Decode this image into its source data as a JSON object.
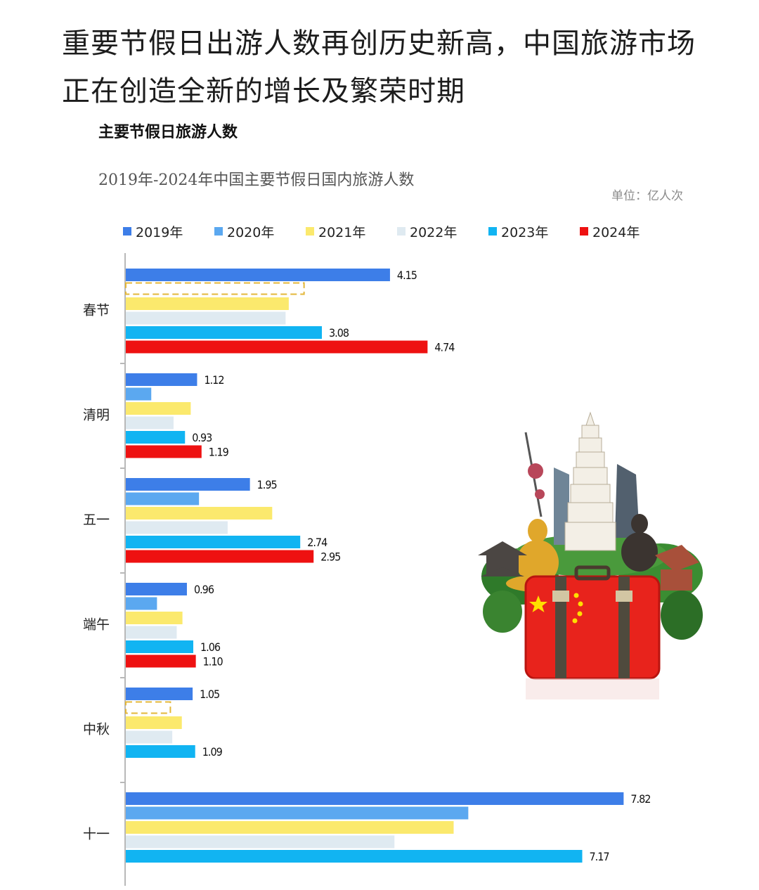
{
  "headline": "重要节假日出游人数再创历史新高，中国旅游市场正在创造全新的增长及繁荣时期",
  "section_title": "主要节假日旅游人数",
  "colors": {
    "2019年": "#3d7ee8",
    "2020年": "#5ba8f0",
    "2021年": "#fbe96d",
    "2022年": "#dfeaf1",
    "2023年": "#11b4f2",
    "2024年": "#ee1111",
    "missing_outline": "#e3b73a"
  },
  "chart_data": {
    "type": "bar",
    "orientation": "horizontal",
    "title": "2019年-2024年中国主要节假日国内旅游人数",
    "unit": "单位：亿人次",
    "categories": [
      "春节",
      "清明",
      "五一",
      "端午",
      "中秋",
      "十一"
    ],
    "series": [
      {
        "name": "2019年",
        "values": [
          4.15,
          1.12,
          1.95,
          0.96,
          1.05,
          7.82
        ]
      },
      {
        "name": "2020年",
        "values": [
          null,
          0.4,
          1.15,
          0.49,
          null,
          5.38
        ]
      },
      {
        "name": "2021年",
        "values": [
          2.56,
          1.02,
          2.3,
          0.89,
          0.88,
          5.15
        ]
      },
      {
        "name": "2022年",
        "values": [
          2.51,
          0.75,
          1.6,
          0.8,
          0.73,
          4.22
        ]
      },
      {
        "name": "2023年",
        "values": [
          3.08,
          0.93,
          2.74,
          1.06,
          1.09,
          7.17
        ]
      },
      {
        "name": "2024年",
        "values": [
          4.74,
          1.19,
          2.95,
          1.1,
          null,
          null
        ]
      }
    ],
    "data_labels": [
      {
        "category": "春节",
        "series": "2019年",
        "text": "4.15"
      },
      {
        "category": "春节",
        "series": "2023年",
        "text": "3.08"
      },
      {
        "category": "春节",
        "series": "2024年",
        "text": "4.74"
      },
      {
        "category": "清明",
        "series": "2019年",
        "text": "1.12"
      },
      {
        "category": "清明",
        "series": "2023年",
        "text": "0.93"
      },
      {
        "category": "清明",
        "series": "2024年",
        "text": "1.19"
      },
      {
        "category": "五一",
        "series": "2019年",
        "text": "1.95"
      },
      {
        "category": "五一",
        "series": "2023年",
        "text": "2.74"
      },
      {
        "category": "五一",
        "series": "2024年",
        "text": "2.95"
      },
      {
        "category": "端午",
        "series": "2019年",
        "text": "0.96"
      },
      {
        "category": "端午",
        "series": "2023年",
        "text": "1.06"
      },
      {
        "category": "端午",
        "series": "2024年",
        "text": "1.10"
      },
      {
        "category": "中秋",
        "series": "2019年",
        "text": "1.05"
      },
      {
        "category": "中秋",
        "series": "2023年",
        "text": "1.09"
      },
      {
        "category": "十一",
        "series": "2019年",
        "text": "7.82"
      },
      {
        "category": "十一",
        "series": "2023年",
        "text": "7.17"
      }
    ],
    "missing_placeholders": [
      {
        "category": "春节",
        "series": "2020年",
        "value": 2.8
      },
      {
        "category": "中秋",
        "series": "2020年",
        "value": 0.7
      }
    ],
    "xlim": [
      0,
      8.3
    ],
    "legend_position": "top",
    "grid": false
  },
  "illustration": {
    "description_icon": "china-travel-suitcase-icon",
    "flag": {
      "field": "#e8231c",
      "stars": "#ffde00"
    }
  }
}
